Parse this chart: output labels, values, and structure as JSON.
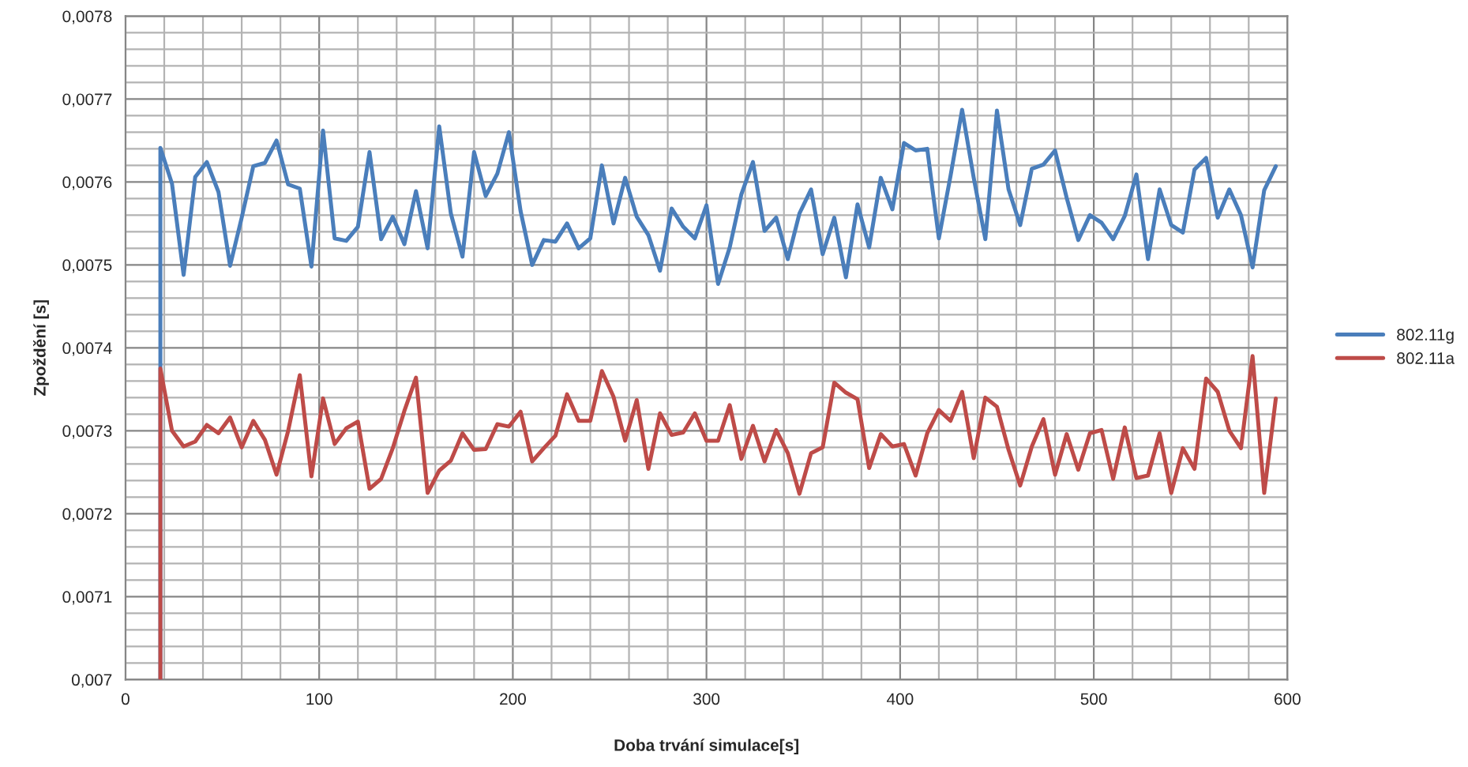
{
  "chart_data": {
    "type": "line",
    "xlabel": "Doba trvání simulace[s]",
    "ylabel": "Zpoždění [s]",
    "xlim": [
      0,
      600
    ],
    "xticks": [
      0,
      {
        "value": 20,
        "label": null
      },
      {
        "value": 40,
        "label": null
      },
      {
        "value": 60,
        "label": null
      },
      {
        "value": 80,
        "label": null
      },
      100,
      {
        "value": 120,
        "label": null
      },
      {
        "value": 140,
        "label": null
      },
      {
        "value": 160,
        "label": null
      },
      {
        "value": 180,
        "label": null
      },
      200,
      {
        "value": 220,
        "label": null
      },
      {
        "value": 240,
        "label": null
      },
      {
        "value": 260,
        "label": null
      },
      {
        "value": 280,
        "label": null
      },
      300,
      {
        "value": 320,
        "label": null
      },
      {
        "value": 340,
        "label": null
      },
      {
        "value": 360,
        "label": null
      },
      {
        "value": 380,
        "label": null
      },
      400,
      {
        "value": 420,
        "label": null
      },
      {
        "value": 440,
        "label": null
      },
      {
        "value": 460,
        "label": null
      },
      {
        "value": 480,
        "label": null
      },
      500,
      {
        "value": 520,
        "label": null
      },
      {
        "value": 540,
        "label": null
      },
      {
        "value": 560,
        "label": null
      },
      {
        "value": 580,
        "label": null
      },
      600
    ],
    "ylim": [
      0.007,
      0.0078
    ],
    "yticks": [
      {
        "value": 0.007,
        "label": "0,007"
      },
      {
        "value": 0.00702,
        "label": null
      },
      {
        "value": 0.00704,
        "label": null
      },
      {
        "value": 0.00706,
        "label": null
      },
      {
        "value": 0.00708,
        "label": null
      },
      {
        "value": 0.0071,
        "label": "0,0071"
      },
      {
        "value": 0.00712,
        "label": null
      },
      {
        "value": 0.00714,
        "label": null
      },
      {
        "value": 0.00716,
        "label": null
      },
      {
        "value": 0.00718,
        "label": null
      },
      {
        "value": 0.0072,
        "label": "0,0072"
      },
      {
        "value": 0.00722,
        "label": null
      },
      {
        "value": 0.00724,
        "label": null
      },
      {
        "value": 0.00726,
        "label": null
      },
      {
        "value": 0.00728,
        "label": null
      },
      {
        "value": 0.0073,
        "label": "0,0073"
      },
      {
        "value": 0.00732,
        "label": null
      },
      {
        "value": 0.00734,
        "label": null
      },
      {
        "value": 0.00736,
        "label": null
      },
      {
        "value": 0.00738,
        "label": null
      },
      {
        "value": 0.0074,
        "label": "0,0074"
      },
      {
        "value": 0.00742,
        "label": null
      },
      {
        "value": 0.00744,
        "label": null
      },
      {
        "value": 0.00746,
        "label": null
      },
      {
        "value": 0.00748,
        "label": null
      },
      {
        "value": 0.0075,
        "label": "0,0075"
      },
      {
        "value": 0.00752,
        "label": null
      },
      {
        "value": 0.00754,
        "label": null
      },
      {
        "value": 0.00756,
        "label": null
      },
      {
        "value": 0.00758,
        "label": null
      },
      {
        "value": 0.0076,
        "label": "0,0076"
      },
      {
        "value": 0.00762,
        "label": null
      },
      {
        "value": 0.00764,
        "label": null
      },
      {
        "value": 0.00766,
        "label": null
      },
      {
        "value": 0.00768,
        "label": null
      },
      {
        "value": 0.0077,
        "label": "0,0077"
      },
      {
        "value": 0.00772,
        "label": null
      },
      {
        "value": 0.00774,
        "label": null
      },
      {
        "value": 0.00776,
        "label": null
      },
      {
        "value": 0.00778,
        "label": null
      },
      {
        "value": 0.0078,
        "label": "0,0078"
      }
    ],
    "grid": true,
    "legend": "right",
    "marker": "none",
    "line_style": "solid",
    "series": [
      {
        "name": "802.11g",
        "color": "#4a7ebb",
        "x": [
          18,
          18,
          24,
          30,
          36,
          42,
          48,
          54,
          60,
          66,
          72,
          78,
          84,
          90,
          96,
          102,
          108,
          114,
          120,
          126,
          132,
          138,
          144,
          150,
          156,
          162,
          168,
          174,
          180,
          186,
          192,
          198,
          204,
          210,
          216,
          222,
          228,
          234,
          240,
          246,
          252,
          258,
          264,
          270,
          276,
          282,
          288,
          294,
          300,
          306,
          312,
          318,
          324,
          330,
          336,
          342,
          348,
          354,
          360,
          366,
          372,
          378,
          384,
          390,
          396,
          402,
          408,
          414,
          420,
          426,
          432,
          438,
          444,
          450,
          456,
          462,
          468,
          474,
          480,
          486,
          492,
          498,
          504,
          510,
          516,
          522,
          528,
          534,
          540,
          546,
          552,
          558,
          564,
          570,
          576,
          582,
          588,
          594
        ],
        "values": [
          0.007,
          0.007641,
          0.007598,
          0.007488,
          0.007606,
          0.007624,
          0.007588,
          0.007499,
          0.007557,
          0.007619,
          0.007623,
          0.00765,
          0.007597,
          0.007592,
          0.007498,
          0.007662,
          0.007532,
          0.007529,
          0.007546,
          0.007636,
          0.007531,
          0.007558,
          0.007525,
          0.007589,
          0.00752,
          0.007667,
          0.007562,
          0.00751,
          0.007636,
          0.007583,
          0.00761,
          0.00766,
          0.007565,
          0.0075,
          0.00753,
          0.007528,
          0.00755,
          0.00752,
          0.007532,
          0.00762,
          0.00755,
          0.007605,
          0.007558,
          0.007536,
          0.007493,
          0.007568,
          0.007546,
          0.007532,
          0.007572,
          0.007477,
          0.007521,
          0.007585,
          0.007624,
          0.007541,
          0.007557,
          0.007507,
          0.007562,
          0.007591,
          0.007513,
          0.007557,
          0.007485,
          0.007573,
          0.007521,
          0.007605,
          0.007567,
          0.007647,
          0.007638,
          0.00764,
          0.007532,
          0.007607,
          0.007687,
          0.007605,
          0.007531,
          0.007686,
          0.007591,
          0.007548,
          0.007616,
          0.007621,
          0.007638,
          0.007581,
          0.00753,
          0.00756,
          0.007551,
          0.007531,
          0.007559,
          0.007609,
          0.007507,
          0.007591,
          0.007548,
          0.007539,
          0.007615,
          0.007629,
          0.007557,
          0.007591,
          0.00756,
          0.007497,
          0.00759,
          0.007619
        ]
      },
      {
        "name": "802.11a",
        "color": "#be4b48",
        "x": [
          18,
          18,
          24,
          30,
          36,
          42,
          48,
          54,
          60,
          66,
          72,
          78,
          84,
          90,
          96,
          102,
          108,
          114,
          120,
          126,
          132,
          138,
          144,
          150,
          156,
          162,
          168,
          174,
          180,
          186,
          192,
          198,
          204,
          210,
          216,
          222,
          228,
          234,
          240,
          246,
          252,
          258,
          264,
          270,
          276,
          282,
          288,
          294,
          300,
          306,
          312,
          318,
          324,
          330,
          336,
          342,
          348,
          354,
          360,
          366,
          372,
          378,
          384,
          390,
          396,
          402,
          408,
          414,
          420,
          426,
          432,
          438,
          444,
          450,
          456,
          462,
          468,
          474,
          480,
          486,
          492,
          498,
          504,
          510,
          516,
          522,
          528,
          534,
          540,
          546,
          552,
          558,
          564,
          570,
          576,
          582,
          588,
          594
        ],
        "values": [
          0.007,
          0.007375,
          0.0073,
          0.007281,
          0.007287,
          0.007307,
          0.007297,
          0.007316,
          0.00728,
          0.007312,
          0.007289,
          0.007247,
          0.0073,
          0.007367,
          0.007245,
          0.007339,
          0.007284,
          0.007303,
          0.007311,
          0.00723,
          0.007242,
          0.007279,
          0.007324,
          0.007364,
          0.007225,
          0.007252,
          0.007264,
          0.007297,
          0.007277,
          0.007278,
          0.007308,
          0.007305,
          0.007323,
          0.007263,
          0.007279,
          0.007294,
          0.007344,
          0.007312,
          0.007312,
          0.007372,
          0.007341,
          0.007288,
          0.007337,
          0.007254,
          0.007321,
          0.007295,
          0.007298,
          0.007321,
          0.007288,
          0.007288,
          0.007331,
          0.007266,
          0.007306,
          0.007263,
          0.007301,
          0.007273,
          0.007224,
          0.007273,
          0.00728,
          0.007358,
          0.007346,
          0.007338,
          0.007255,
          0.007296,
          0.007281,
          0.007284,
          0.007246,
          0.007297,
          0.007325,
          0.007312,
          0.007347,
          0.007267,
          0.00734,
          0.007329,
          0.007277,
          0.007234,
          0.007281,
          0.007314,
          0.007247,
          0.007296,
          0.007253,
          0.007297,
          0.007301,
          0.007242,
          0.007304,
          0.007243,
          0.007246,
          0.007297,
          0.007225,
          0.007279,
          0.007254,
          0.007363,
          0.007347,
          0.0073,
          0.007279,
          0.00739,
          0.007225,
          0.007339
        ]
      }
    ]
  }
}
